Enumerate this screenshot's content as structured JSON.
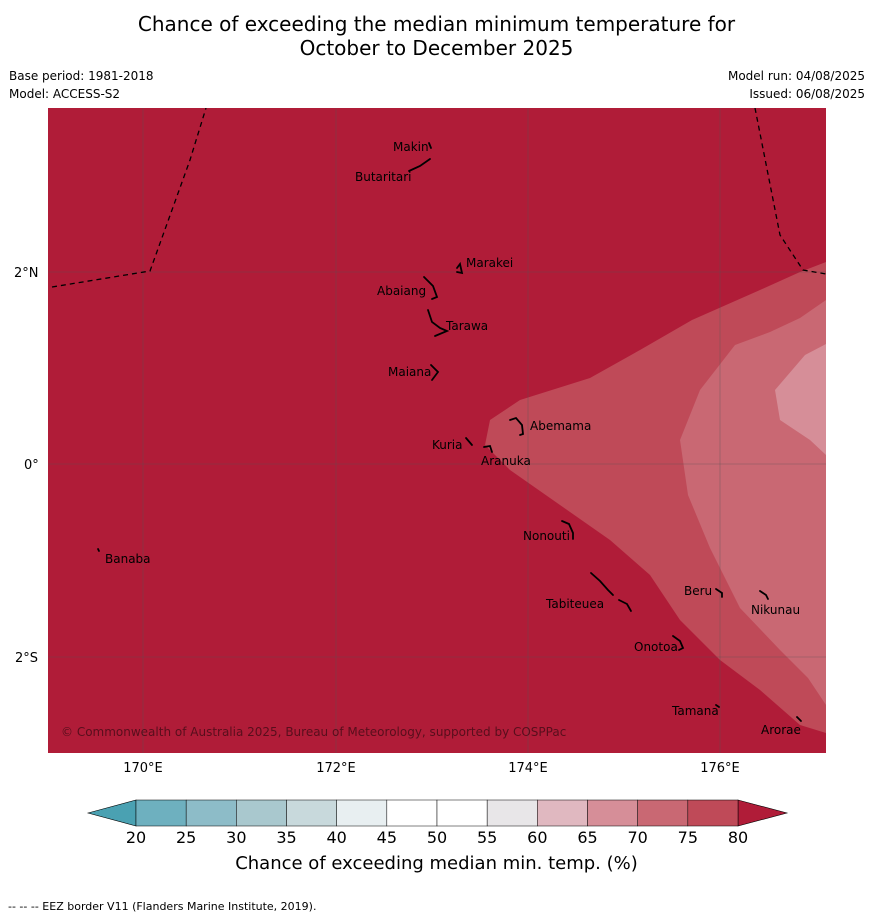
{
  "title_line1": "Chance of exceeding the median minimum temperature for",
  "title_line2": "October to December 2025",
  "base_period": "Base period: 1981-2018",
  "model": "Model: ACCESS-S2",
  "model_run": "Model run: 04/08/2025",
  "issued": "Issued: 06/08/2025",
  "copyright": "© Commonwealth of Australia 2025, Bureau of Meteorology, supported by COSPPac",
  "lat_ticks": [
    "2°N",
    "0°",
    "2°S"
  ],
  "lon_ticks": [
    "170°E",
    "172°E",
    "174°E",
    "176°E"
  ],
  "places": [
    {
      "name": "Makin"
    },
    {
      "name": "Butaritari"
    },
    {
      "name": "Marakei"
    },
    {
      "name": "Abaiang"
    },
    {
      "name": "Tarawa"
    },
    {
      "name": "Maiana"
    },
    {
      "name": "Abemama"
    },
    {
      "name": "Kuria"
    },
    {
      "name": "Aranuka"
    },
    {
      "name": "Nonouti"
    },
    {
      "name": "Banaba"
    },
    {
      "name": "Beru"
    },
    {
      "name": "Nikunau"
    },
    {
      "name": "Tabiteuea"
    },
    {
      "name": "Onotoa"
    },
    {
      "name": "Tamana"
    },
    {
      "name": "Arorae"
    }
  ],
  "colorbar": {
    "labels": [
      "20",
      "25",
      "30",
      "35",
      "40",
      "45",
      "50",
      "55",
      "60",
      "65",
      "70",
      "75",
      "80"
    ],
    "colors": [
      "#6eb0bf",
      "#8dbcc8",
      "#a9c8ce",
      "#c8d9dc",
      "#e8eff1",
      "#ffffff",
      "#ffffff",
      "#e8e6e8",
      "#e0b8c0",
      "#d68e98",
      "#c96873",
      "#bf4a58"
    ],
    "under_color": "#4aa1b2",
    "over_color": "#b01c38",
    "title": "Chance of exceeding median min. temp. (%)"
  },
  "map_colors": {
    "above_80": "#b01c38",
    "band_75_80": "#bf4a58",
    "band_70_75": "#c96873",
    "band_65_70": "#d68e98"
  },
  "footer": "--  --  -- EEZ border V11 (Flanders Marine Institute, 2019)."
}
